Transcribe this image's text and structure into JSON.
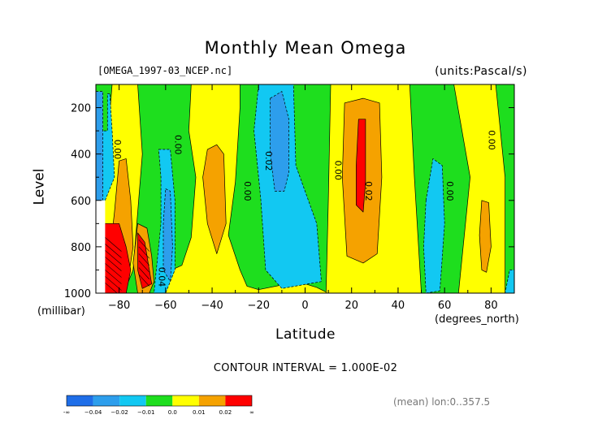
{
  "header": {
    "title": "Monthly Mean Omega",
    "file_label": "[OMEGA_1997-03_NCEP.nc]",
    "units_label": "(units:Pascal/s)"
  },
  "axes": {
    "y_title": "Level",
    "y_unit": "(millibar)",
    "x_title": "Latitude",
    "x_unit": "(degrees_north)"
  },
  "footer": {
    "contour_interval": "CONTOUR INTERVAL = 1.000E-02",
    "mean_lon": "(mean) lon:0..357.5"
  },
  "chart_data": {
    "type": "heatmap",
    "title": "Monthly Mean Omega",
    "units": "Pascal/s",
    "xlabel": "Latitude",
    "ylabel": "Level",
    "xlim": [
      -90,
      90
    ],
    "ylim": [
      1000,
      100
    ],
    "x_ticks": [
      -80,
      -60,
      -40,
      -20,
      0,
      20,
      40,
      60,
      80
    ],
    "y_ticks": [
      200,
      400,
      600,
      800,
      1000
    ],
    "x_tick_labels": [
      "−80",
      "−60",
      "−40",
      "−20",
      "0",
      "20",
      "40",
      "60",
      "80"
    ],
    "y_tick_labels": [
      "200",
      "400",
      "600",
      "800",
      "1000"
    ],
    "contour_interval": 0.01,
    "colorbar": {
      "colors": [
        "#1f6ee8",
        "#2d9eec",
        "#12c8f2",
        "#1ede1e",
        "#ffff00",
        "#f5a200",
        "#ff0000"
      ],
      "labels": [
        "-∞",
        "−0.04",
        "−0.02",
        "−0.01",
        "0.0",
        "0.01",
        "0.02",
        "∞"
      ]
    },
    "contour_labels": [
      {
        "text": "0.00",
        "x": -82,
        "y": 380
      },
      {
        "text": "0.00",
        "x": -56,
        "y": 360
      },
      {
        "text": "0.04",
        "x": -63,
        "y": 930
      },
      {
        "text": "0.02",
        "x": -17,
        "y": 430
      },
      {
        "text": "0.00",
        "x": -26,
        "y": 560
      },
      {
        "text": "0.00",
        "x": 13,
        "y": 470
      },
      {
        "text": "0.02",
        "x": 26,
        "y": 560
      },
      {
        "text": "0.00",
        "x": 61,
        "y": 560
      },
      {
        "text": "0.00",
        "x": 79,
        "y": 340
      },
      {
        "text": "0.00",
        "x": 96,
        "y": 340
      }
    ],
    "regions": [
      {
        "level": "zero",
        "polygon": [
          [
            -90,
            100
          ],
          [
            90,
            100
          ],
          [
            90,
            1000
          ],
          [
            -90,
            1000
          ]
        ]
      },
      {
        "level": "pos1",
        "polygon": [
          [
            -83,
            100
          ],
          [
            -72,
            100
          ],
          [
            -70,
            400
          ],
          [
            -74,
            900
          ],
          [
            -78,
            1000
          ],
          [
            -86,
            1000
          ],
          [
            -88,
            700
          ],
          [
            -85,
            350
          ]
        ]
      },
      {
        "level": "pos1",
        "polygon": [
          [
            -49,
            100
          ],
          [
            -28,
            100
          ],
          [
            -28,
            200
          ],
          [
            -30,
            520
          ],
          [
            -33,
            750
          ],
          [
            -28,
            900
          ],
          [
            -25,
            970
          ],
          [
            -20,
            985
          ],
          [
            -5,
            955
          ],
          [
            0,
            960
          ],
          [
            5,
            975
          ],
          [
            10,
            1000
          ],
          [
            -64,
            1000
          ],
          [
            -64,
            930
          ],
          [
            -53,
            880
          ],
          [
            -49,
            760
          ],
          [
            -47,
            500
          ],
          [
            -50,
            300
          ]
        ]
      },
      {
        "level": "pos1",
        "polygon": [
          [
            11,
            100
          ],
          [
            45,
            100
          ],
          [
            47,
            500
          ],
          [
            50,
            1000
          ],
          [
            9,
            1000
          ],
          [
            10,
            600
          ]
        ]
      },
      {
        "level": "pos1",
        "polygon": [
          [
            64,
            100
          ],
          [
            82,
            100
          ],
          [
            86,
            500
          ],
          [
            86,
            1000
          ],
          [
            66,
            1000
          ],
          [
            71,
            500
          ]
        ]
      },
      {
        "level": "pos2",
        "polygon": [
          [
            -42,
            380
          ],
          [
            -38,
            360
          ],
          [
            -35,
            400
          ],
          [
            -34,
            700
          ],
          [
            -38,
            830
          ],
          [
            -42,
            700
          ],
          [
            -44,
            500
          ]
        ]
      },
      {
        "level": "pos2",
        "polygon": [
          [
            17,
            180
          ],
          [
            25,
            160
          ],
          [
            32,
            180
          ],
          [
            33,
            500
          ],
          [
            31,
            830
          ],
          [
            25,
            870
          ],
          [
            18,
            840
          ],
          [
            16,
            500
          ]
        ]
      },
      {
        "level": "pos2",
        "polygon": [
          [
            76,
            600
          ],
          [
            79,
            610
          ],
          [
            80,
            800
          ],
          [
            78,
            910
          ],
          [
            76,
            900
          ],
          [
            75,
            750
          ]
        ]
      },
      {
        "level": "pos2",
        "polygon": [
          [
            -80,
            430
          ],
          [
            -77,
            420
          ],
          [
            -75,
            600
          ],
          [
            -74,
            800
          ],
          [
            -77,
            1000
          ],
          [
            -82,
            1000
          ],
          [
            -84,
            830
          ],
          [
            -82,
            650
          ]
        ]
      },
      {
        "level": "pos2",
        "polygon": [
          [
            -72,
            700
          ],
          [
            -68,
            720
          ],
          [
            -66,
            840
          ],
          [
            -65,
            950
          ],
          [
            -67,
            1000
          ],
          [
            -72,
            1000
          ],
          [
            -74,
            870
          ]
        ]
      },
      {
        "level": "pos3",
        "polygon": [
          [
            -88,
            700
          ],
          [
            -80,
            700
          ],
          [
            -77,
            800
          ],
          [
            -75,
            900
          ],
          [
            -77,
            1000
          ],
          [
            -88,
            1000
          ]
        ]
      },
      {
        "level": "pos3",
        "polygon": [
          [
            -72,
            740
          ],
          [
            -69,
            780
          ],
          [
            -67,
            900
          ],
          [
            -66,
            960
          ],
          [
            -70,
            980
          ],
          [
            -72,
            900
          ]
        ]
      },
      {
        "level": "pos3",
        "polygon": [
          [
            23,
            250
          ],
          [
            26,
            250
          ],
          [
            26,
            520
          ],
          [
            25,
            650
          ],
          [
            22,
            620
          ],
          [
            22,
            450
          ]
        ]
      },
      {
        "level": "neg1",
        "polygon": [
          [
            -84,
            140
          ],
          [
            -85,
            140
          ],
          [
            -85,
            300
          ],
          [
            -90,
            300
          ],
          [
            -90,
            600
          ],
          [
            -86,
            600
          ],
          [
            -82,
            500
          ],
          [
            -83,
            300
          ]
        ]
      },
      {
        "level": "neg1",
        "polygon": [
          [
            -63,
            380
          ],
          [
            -58,
            380
          ],
          [
            -56,
            600
          ],
          [
            -56,
            900
          ],
          [
            -60,
            1000
          ],
          [
            -65,
            1000
          ],
          [
            -62,
            700
          ],
          [
            -62,
            500
          ]
        ]
      },
      {
        "level": "neg1",
        "polygon": [
          [
            -20,
            100
          ],
          [
            -5,
            100
          ],
          [
            -4,
            450
          ],
          [
            5,
            700
          ],
          [
            7,
            950
          ],
          [
            -10,
            980
          ],
          [
            -17,
            900
          ],
          [
            -19,
            600
          ],
          [
            -22,
            300
          ]
        ]
      },
      {
        "level": "neg1",
        "polygon": [
          [
            52,
            600
          ],
          [
            55,
            420
          ],
          [
            59,
            450
          ],
          [
            60,
            700
          ],
          [
            58,
            990
          ],
          [
            52,
            1000
          ],
          [
            51,
            800
          ]
        ]
      },
      {
        "level": "neg1",
        "polygon": [
          [
            88,
            900
          ],
          [
            90,
            900
          ],
          [
            90,
            1000
          ],
          [
            86,
            1000
          ]
        ]
      },
      {
        "level": "neg2",
        "polygon": [
          [
            -15,
            160
          ],
          [
            -10,
            130
          ],
          [
            -7,
            250
          ],
          [
            -7,
            480
          ],
          [
            -9,
            560
          ],
          [
            -13,
            560
          ],
          [
            -15,
            400
          ]
        ]
      },
      {
        "level": "neg2",
        "polygon": [
          [
            -60,
            550
          ],
          [
            -58,
            560
          ],
          [
            -57,
            800
          ],
          [
            -58,
            950
          ],
          [
            -61,
            900
          ],
          [
            -61,
            700
          ]
        ]
      },
      {
        "level": "neg2",
        "polygon": [
          [
            -90,
            130
          ],
          [
            -87,
            130
          ],
          [
            -87,
            600
          ],
          [
            -90,
            600
          ]
        ]
      },
      {
        "level": "missing",
        "polygon": [
          [
            -90,
            600
          ],
          [
            -86,
            600
          ],
          [
            -86,
            1000
          ],
          [
            -90,
            1000
          ]
        ]
      }
    ]
  }
}
